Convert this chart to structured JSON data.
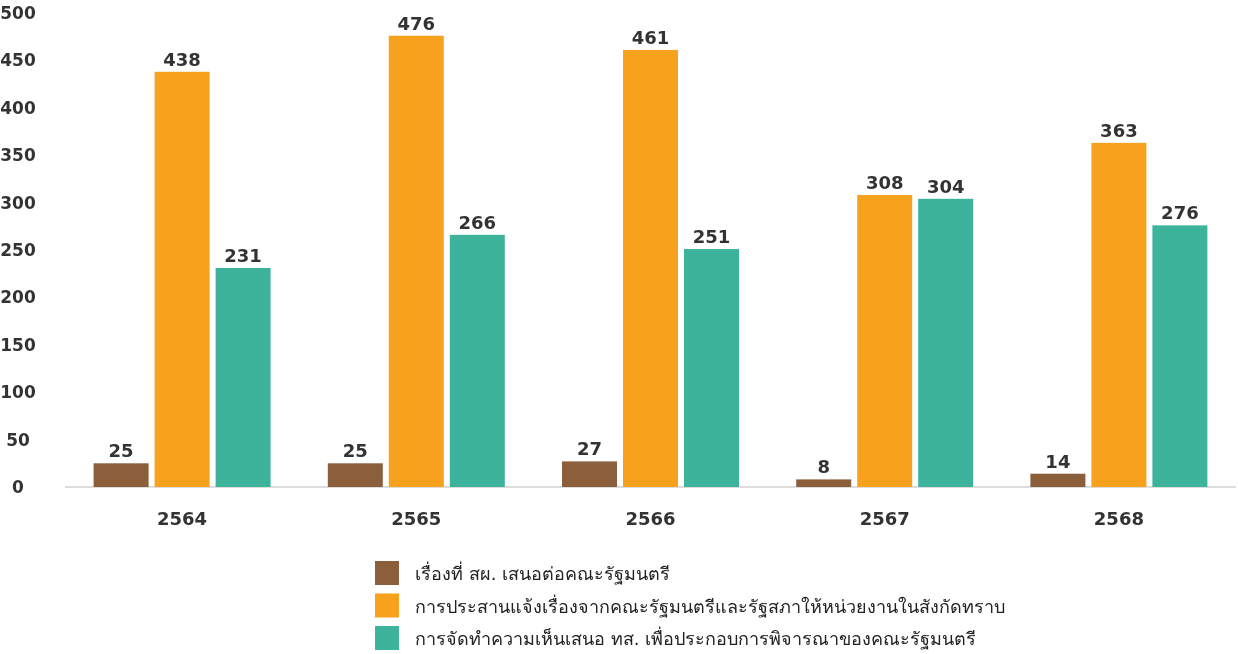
{
  "chart_data": {
    "type": "bar",
    "categories": [
      "2564",
      "2565",
      "2566",
      "2567",
      "2568"
    ],
    "series": [
      {
        "name": "เรื่องที่ สผ. เสนอต่อคณะรัฐมนตรี",
        "color": "#8b5e3c",
        "values": [
          25,
          25,
          27,
          8,
          14
        ]
      },
      {
        "name": "การประสานแจ้งเรื่องจากคณะรัฐมนตรีและรัฐสภาให้หน่วยงานในสังกัดทราบ",
        "color": "#f8a11c",
        "values": [
          438,
          476,
          461,
          308,
          363
        ]
      },
      {
        "name": "การจัดทำความเห็นเสนอ ทส. เพื่อประกอบการพิจารณาของคณะรัฐมนตรี",
        "color": "#3db39c",
        "values": [
          231,
          266,
          251,
          304,
          276
        ]
      }
    ],
    "ylim": [
      0,
      500
    ],
    "yticks": [
      0,
      50,
      100,
      150,
      200,
      250,
      300,
      350,
      400,
      450,
      500
    ],
    "data_labels": true,
    "legend": "bottom",
    "grid": false
  }
}
